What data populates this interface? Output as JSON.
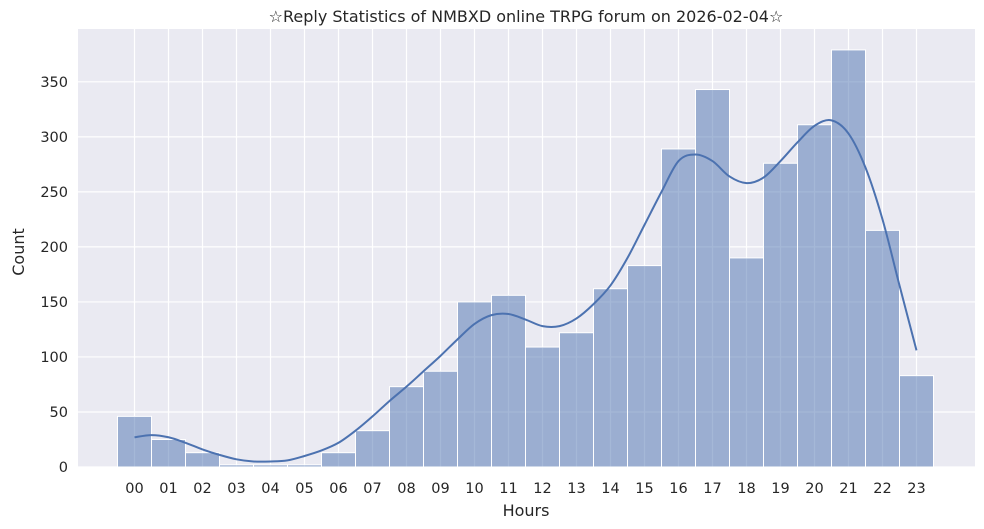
{
  "chart_data": {
    "type": "bar",
    "title": "☆Reply Statistics of NMBXD online TRPG forum on 2026-02-04☆",
    "xlabel": "Hours",
    "ylabel": "Count",
    "categories": [
      "00",
      "01",
      "02",
      "03",
      "04",
      "05",
      "06",
      "07",
      "08",
      "09",
      "10",
      "11",
      "12",
      "13",
      "14",
      "15",
      "16",
      "17",
      "18",
      "19",
      "20",
      "21",
      "22",
      "23"
    ],
    "values": [
      46,
      25,
      13,
      2,
      2,
      2,
      13,
      33,
      73,
      87,
      150,
      156,
      109,
      122,
      162,
      183,
      289,
      343,
      190,
      276,
      311,
      379,
      215,
      83
    ],
    "yticks": [
      0,
      50,
      100,
      150,
      200,
      250,
      300,
      350
    ],
    "ylim": [
      0,
      398
    ],
    "grid": true,
    "kde_line": {
      "x": [
        0,
        0.5,
        1,
        1.5,
        2,
        2.5,
        3,
        3.5,
        4,
        4.5,
        5,
        5.5,
        6,
        6.5,
        7,
        7.5,
        8,
        8.5,
        9,
        9.5,
        10,
        10.5,
        11,
        11.5,
        12,
        12.5,
        13,
        13.5,
        14,
        14.5,
        15,
        15.5,
        16,
        16.5,
        17,
        17.5,
        18,
        18.5,
        19,
        19.5,
        20,
        20.5,
        21,
        21.5,
        22,
        22.5,
        23
      ],
      "y": [
        27,
        29,
        27,
        22,
        16,
        11,
        7,
        5,
        5,
        6,
        10,
        15,
        22,
        33,
        46,
        60,
        73,
        87,
        101,
        116,
        130,
        138,
        139,
        134,
        128,
        128,
        135,
        148,
        165,
        190,
        220,
        250,
        278,
        284,
        278,
        264,
        258,
        263,
        278,
        295,
        310,
        315,
        303,
        272,
        225,
        165,
        106
      ]
    },
    "colors": {
      "bar_fill": "#4c72b0",
      "bar_fill_opacity": 0.5,
      "line": "#4c72b0",
      "plot_background": "#eaeaf2",
      "grid": "#ffffff"
    }
  }
}
